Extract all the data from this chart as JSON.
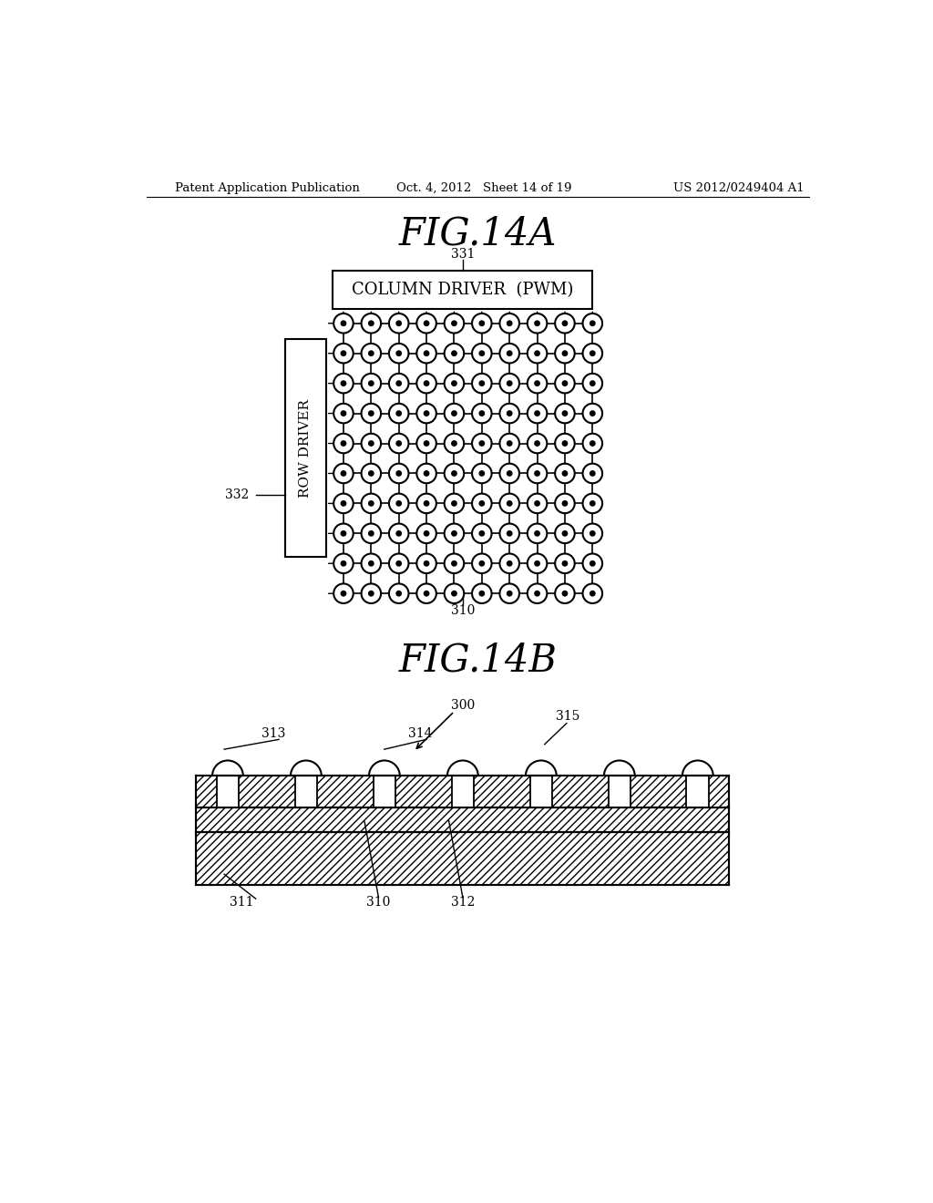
{
  "background_color": "#ffffff",
  "header_left": "Patent Application Publication",
  "header_center": "Oct. 4, 2012   Sheet 14 of 19",
  "header_right": "US 2012/0249404 A1",
  "fig14a_title": "FIG.14A",
  "fig14b_title": "FIG.14B",
  "col_driver_label": "COLUMN DRIVER  (PWM)",
  "row_driver_label": "ROW DRIVER",
  "label_331": "331",
  "label_332": "332",
  "label_310a": "310",
  "label_310b": "310",
  "label_300": "300",
  "label_311": "311",
  "label_312": "312",
  "label_313": "313",
  "label_314": "314",
  "label_315": "315",
  "grid_cols": 10,
  "grid_rows": 10
}
